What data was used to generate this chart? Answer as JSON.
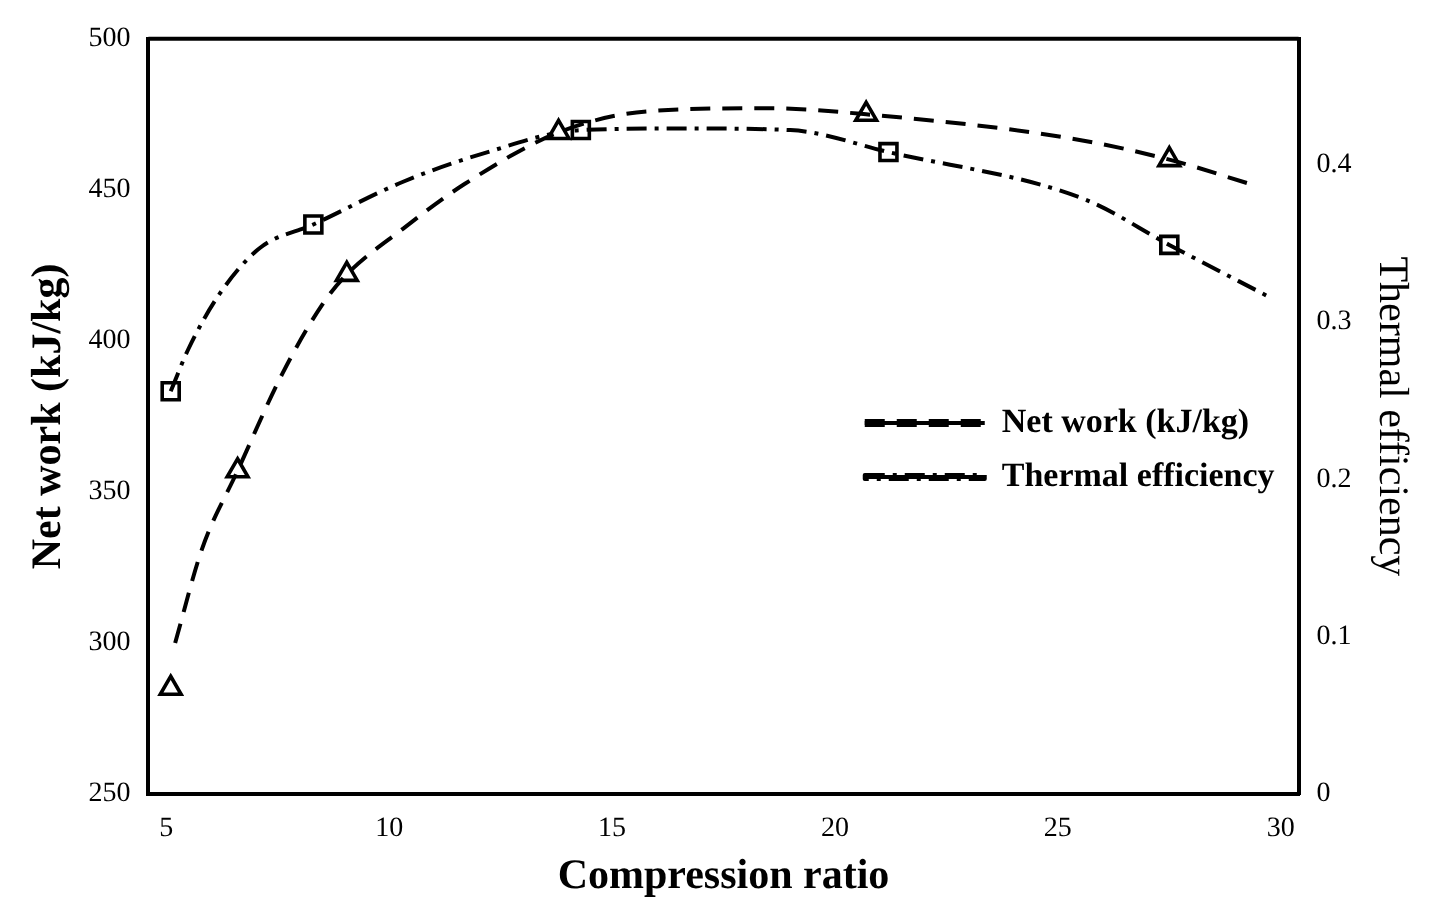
{
  "chart_data": {
    "type": "line",
    "xlabel": "Compression ratio",
    "ylabel": "Net work (kJ/kg)",
    "y2label": "Thermal efficiency",
    "xlim": [
      4.6,
      30.4
    ],
    "xticks": [
      5,
      10,
      15,
      20,
      25,
      30
    ],
    "ylim": [
      250,
      500
    ],
    "yticks": [
      250,
      300,
      350,
      400,
      450,
      500
    ],
    "y2lim": [
      0,
      0.48
    ],
    "y2ticks": [
      0,
      0.1,
      0.2,
      0.3,
      0.4
    ],
    "grid": false,
    "legend": "bottom right",
    "series": [
      {
        "name": "Net work (kJ/kg)",
        "color": "#000000",
        "line_style": "dashed",
        "marker": "none",
        "x": [
          5.2,
          5.8,
          6.6,
          7.6,
          8.5,
          9.05,
          10.3,
          11.7,
          13.8,
          15.8,
          18.5,
          20.7,
          25.3,
          27.5,
          29.3
        ],
        "values": [
          300,
          331,
          357,
          389,
          412,
          422,
          437,
          452,
          469,
          476,
          477,
          475,
          467,
          460,
          452
        ]
      },
      {
        "type": "scatter",
        "color": "#000000",
        "marker": "triangle",
        "x": [
          5.1,
          6.6,
          9.05,
          13.8,
          20.7,
          27.5
        ],
        "values": [
          285,
          357,
          422,
          469,
          475,
          460
        ]
      },
      {
        "name": "Thermal efficiency",
        "axis": "y2",
        "color": "#000000",
        "line_style": "dashdot",
        "marker": "none",
        "x": [
          5.1,
          5.5,
          6.2,
          7.1,
          8.3,
          10.3,
          12.1,
          14.3,
          16.7,
          19,
          21.2,
          25.6,
          27.5,
          29.8
        ],
        "values": [
          0.256,
          0.283,
          0.318,
          0.347,
          0.362,
          0.389,
          0.407,
          0.422,
          0.423,
          0.422,
          0.408,
          0.378,
          0.349,
          0.315
        ]
      },
      {
        "type": "scatter",
        "axis": "y2",
        "color": "#000000",
        "marker": "square",
        "x": [
          5.1,
          8.3,
          14.3,
          21.2,
          27.5
        ],
        "values": [
          0.256,
          0.362,
          0.422,
          0.408,
          0.349
        ]
      }
    ]
  }
}
